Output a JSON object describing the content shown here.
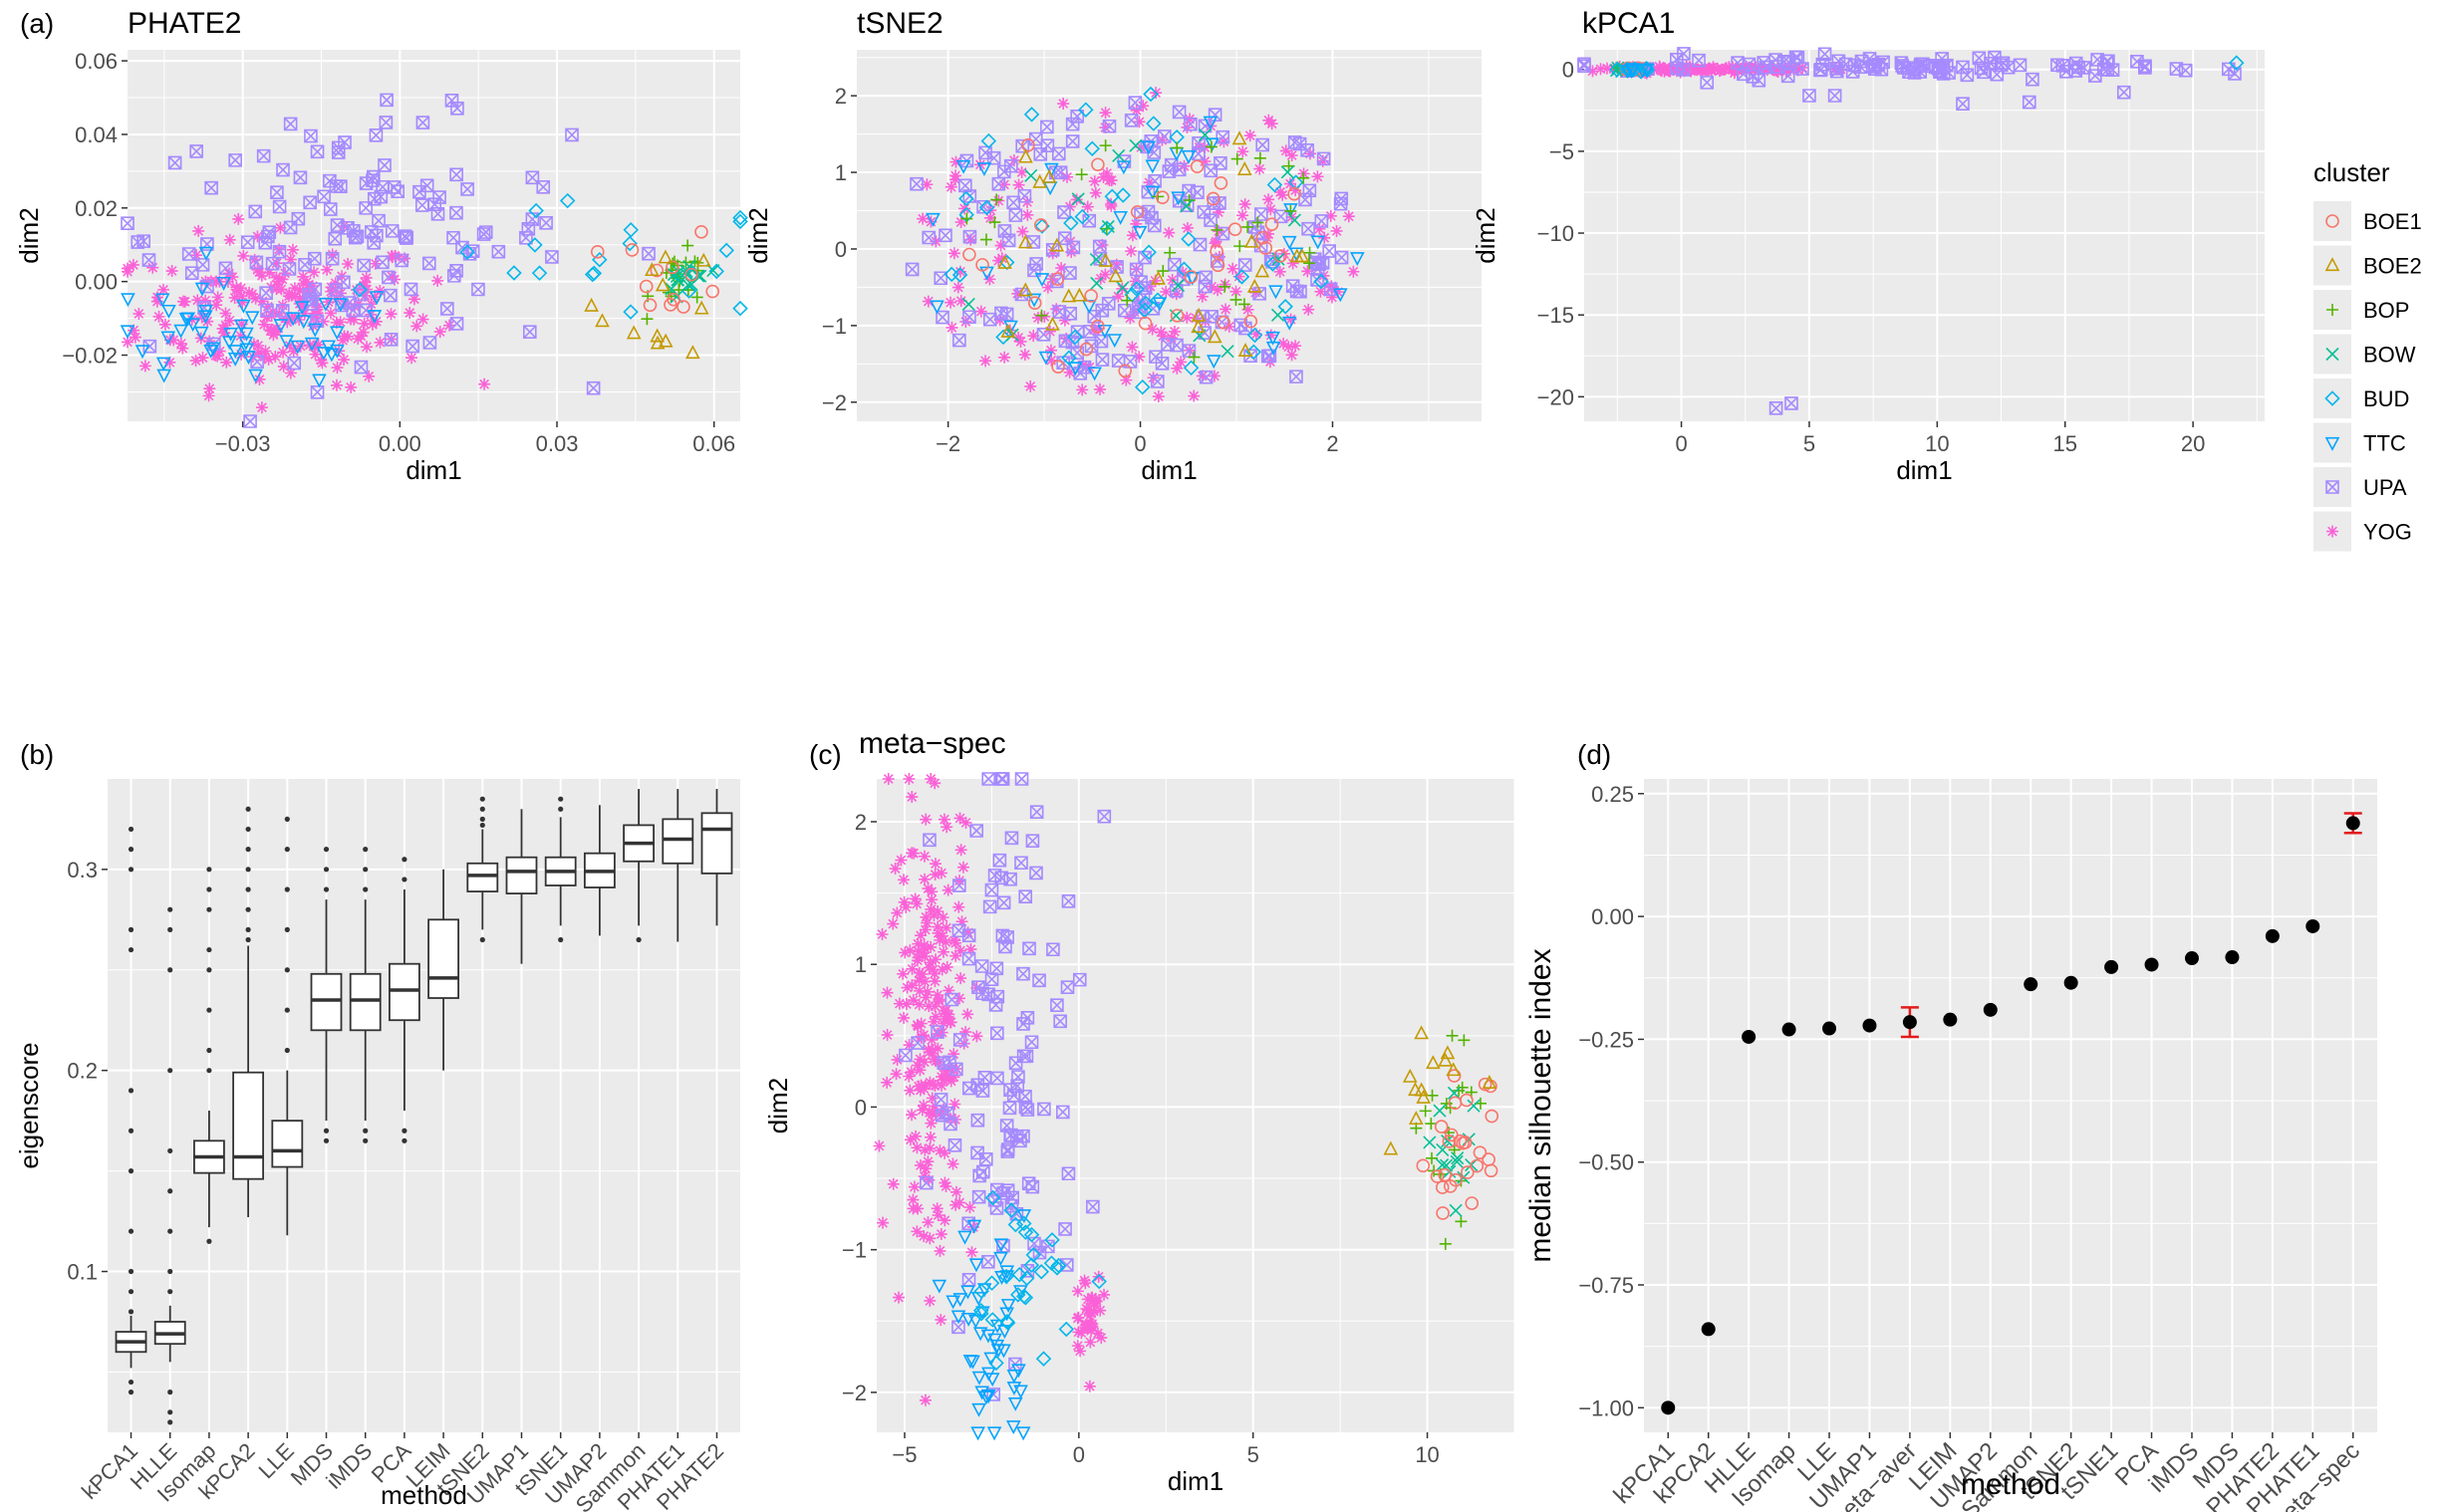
{
  "colors": {
    "BOE1": "#F8766D",
    "BOE2": "#C49A00",
    "BOP": "#53B400",
    "BOW": "#00C094",
    "BUD": "#00B6EB",
    "TTC": "#06A4FF",
    "UPA": "#A58AFF",
    "YOG": "#FB61D7",
    "panel_bg": "#EBEBEB",
    "grid": "#FFFFFF",
    "error_bar": "#E41A1C"
  },
  "legend": {
    "title": "cluster",
    "entries": [
      {
        "label": "BOE1",
        "shape": "circle"
      },
      {
        "label": "BOE2",
        "shape": "triangle"
      },
      {
        "label": "BOP",
        "shape": "plus"
      },
      {
        "label": "BOW",
        "shape": "cross"
      },
      {
        "label": "BUD",
        "shape": "diamond"
      },
      {
        "label": "TTC",
        "shape": "triangle-down"
      },
      {
        "label": "UPA",
        "shape": "square-cross"
      },
      {
        "label": "YOG",
        "shape": "asterisk"
      }
    ]
  },
  "chart_data": [
    {
      "id": "phate2",
      "panel_label": "(a)",
      "type": "scatter",
      "title": "PHATE2",
      "xlabel": "dim1",
      "ylabel": "dim2",
      "xlim": [
        -0.052,
        0.065
      ],
      "ylim": [
        -0.038,
        0.063
      ],
      "xticks": [
        -0.03,
        0.0,
        0.03,
        0.06
      ],
      "xtick_labels": [
        "−0.03",
        "0.00",
        "0.03",
        "0.06"
      ],
      "yticks": [
        -0.02,
        0.0,
        0.02,
        0.04,
        0.06
      ],
      "ytick_labels": [
        "−0.02",
        "0.00",
        "0.02",
        "0.04",
        "0.06"
      ],
      "note": "clusters represented as point clouds",
      "clusters": [
        {
          "name": "YOG",
          "n": 220,
          "cx": -0.022,
          "cy": -0.008,
          "sx": 0.014,
          "sy": 0.01
        },
        {
          "name": "UPA",
          "n": 140,
          "cx": -0.008,
          "cy": 0.012,
          "sx": 0.02,
          "sy": 0.016
        },
        {
          "name": "TTC",
          "n": 50,
          "cx": -0.03,
          "cy": -0.015,
          "sx": 0.016,
          "sy": 0.007
        },
        {
          "name": "BUD",
          "n": 20,
          "cx": 0.04,
          "cy": 0.005,
          "sx": 0.018,
          "sy": 0.008
        },
        {
          "name": "BOP",
          "n": 20,
          "cx": 0.054,
          "cy": 0.0,
          "sx": 0.003,
          "sy": 0.004
        },
        {
          "name": "BOW",
          "n": 15,
          "cx": 0.055,
          "cy": 0.001,
          "sx": 0.002,
          "sy": 0.003
        },
        {
          "name": "BOE1",
          "n": 12,
          "cx": 0.052,
          "cy": 0.002,
          "sx": 0.005,
          "sy": 0.006
        },
        {
          "name": "BOE2",
          "n": 12,
          "cx": 0.05,
          "cy": -0.005,
          "sx": 0.006,
          "sy": 0.008
        }
      ]
    },
    {
      "id": "tsne2",
      "panel_label": "",
      "type": "scatter",
      "title": "tSNE2",
      "xlabel": "dim1",
      "ylabel": "dim2",
      "xlim": [
        -2.95,
        3.55
      ],
      "ylim": [
        -2.25,
        2.6
      ],
      "xticks": [
        -2,
        0,
        2
      ],
      "xtick_labels": [
        "−2",
        "0",
        "2"
      ],
      "yticks": [
        -2,
        -1,
        0,
        1,
        2
      ],
      "ytick_labels": [
        "−2",
        "−1",
        "0",
        "1",
        "2"
      ],
      "clusters": [
        {
          "name": "YOG",
          "n": 200,
          "cx": 0.0,
          "cy": 0.0,
          "sx": 1.2,
          "sy": 1.0
        },
        {
          "name": "UPA",
          "n": 170,
          "cx": 0.0,
          "cy": 0.0,
          "sx": 1.3,
          "sy": 1.0
        },
        {
          "name": "TTC",
          "n": 40,
          "cx": 0.0,
          "cy": 0.0,
          "sx": 1.2,
          "sy": 1.0
        },
        {
          "name": "BUD",
          "n": 40,
          "cx": 0.0,
          "cy": 0.0,
          "sx": 1.2,
          "sy": 1.0
        },
        {
          "name": "BOP",
          "n": 30,
          "cx": 0.0,
          "cy": 0.0,
          "sx": 1.0,
          "sy": 0.9
        },
        {
          "name": "BOW",
          "n": 20,
          "cx": 0.0,
          "cy": 0.0,
          "sx": 1.0,
          "sy": 0.9
        },
        {
          "name": "BOE1",
          "n": 30,
          "cx": 0.0,
          "cy": 0.0,
          "sx": 1.0,
          "sy": 0.9
        },
        {
          "name": "BOE2",
          "n": 25,
          "cx": 0.0,
          "cy": 0.0,
          "sx": 1.0,
          "sy": 0.9
        }
      ]
    },
    {
      "id": "kpca1",
      "panel_label": "",
      "type": "scatter",
      "title": "kPCA1",
      "xlabel": "dim1",
      "ylabel": "dim2",
      "xlim": [
        -3.8,
        22.8
      ],
      "ylim": [
        -21.5,
        1.2
      ],
      "xticks": [
        0,
        5,
        10,
        15,
        20
      ],
      "xtick_labels": [
        "0",
        "5",
        "10",
        "15",
        "20"
      ],
      "yticks": [
        0,
        -5,
        -10,
        -15,
        -20
      ],
      "ytick_labels": [
        "0",
        "−5",
        "−10",
        "−15",
        "−20"
      ],
      "clusters": [
        {
          "name": "YOG",
          "n": 120,
          "cx": 1.0,
          "cy": 0.0,
          "sx": 2.0,
          "sy": 0.08
        },
        {
          "name": "UPA",
          "n": 100,
          "cx": 9.0,
          "cy": 0.1,
          "sx": 6.0,
          "sy": 0.3
        },
        {
          "name": "BOP",
          "n": 10,
          "cx": -2.2,
          "cy": 0.0,
          "sx": 0.3,
          "sy": 0.05
        },
        {
          "name": "BOW",
          "n": 8,
          "cx": -2.2,
          "cy": 0.0,
          "sx": 0.3,
          "sy": 0.05
        },
        {
          "name": "BOE1",
          "n": 8,
          "cx": -2.0,
          "cy": 0.0,
          "sx": 0.3,
          "sy": 0.05
        },
        {
          "name": "BUD",
          "n": 8,
          "cx": -2.0,
          "cy": 0.0,
          "sx": 0.4,
          "sy": 0.05
        },
        {
          "name": "TTC",
          "n": 6,
          "cx": -1.5,
          "cy": 0.0,
          "sx": 0.5,
          "sy": 0.05
        }
      ],
      "extra_points": [
        {
          "cluster": "BUD",
          "x": 21.7,
          "y": 0.4
        },
        {
          "cluster": "UPA",
          "x": 3.7,
          "y": -20.7
        },
        {
          "cluster": "UPA",
          "x": 4.3,
          "y": -20.4
        },
        {
          "cluster": "UPA",
          "x": 5.0,
          "y": -1.6
        },
        {
          "cluster": "UPA",
          "x": 6.0,
          "y": -1.6
        },
        {
          "cluster": "UPA",
          "x": 11.0,
          "y": -2.1
        },
        {
          "cluster": "UPA",
          "x": 13.6,
          "y": -2.0
        },
        {
          "cluster": "UPA",
          "x": 17.3,
          "y": -1.4
        },
        {
          "cluster": "UPA",
          "x": 1.0,
          "y": -0.8
        }
      ]
    },
    {
      "id": "eigenscore",
      "panel_label": "(b)",
      "type": "box",
      "title": "",
      "xlabel": "method",
      "ylabel": "eigenscore",
      "ylim": [
        0.02,
        0.345
      ],
      "yticks": [
        0.1,
        0.2,
        0.3
      ],
      "ytick_labels": [
        "0.1",
        "0.2",
        "0.3"
      ],
      "categories": [
        "kPCA1",
        "HLLE",
        "Isomap",
        "kPCA2",
        "LLE",
        "MDS",
        "iMDS",
        "PCA",
        "LEIM",
        "tSNE2",
        "UMAP1",
        "tSNE1",
        "UMAP2",
        "Sammon",
        "PHATE1",
        "PHATE2"
      ],
      "boxes": [
        {
          "min": 0.052,
          "q1": 0.06,
          "median": 0.065,
          "q3": 0.07,
          "max": 0.078,
          "outliers": [
            0.04,
            0.045,
            0.08,
            0.09,
            0.1,
            0.12,
            0.15,
            0.17,
            0.19,
            0.26,
            0.27,
            0.3,
            0.31,
            0.32
          ]
        },
        {
          "min": 0.055,
          "q1": 0.064,
          "median": 0.069,
          "q3": 0.075,
          "max": 0.083,
          "outliers": [
            0.025,
            0.03,
            0.04,
            0.09,
            0.1,
            0.12,
            0.14,
            0.16,
            0.2,
            0.25,
            0.27,
            0.28
          ]
        },
        {
          "min": 0.122,
          "q1": 0.149,
          "median": 0.157,
          "q3": 0.165,
          "max": 0.18,
          "outliers": [
            0.2,
            0.21,
            0.23,
            0.25,
            0.26,
            0.28,
            0.29,
            0.3,
            0.115
          ]
        },
        {
          "min": 0.127,
          "q1": 0.146,
          "median": 0.157,
          "q3": 0.199,
          "max": 0.262,
          "outliers": [
            0.265,
            0.27,
            0.28,
            0.29,
            0.3,
            0.31,
            0.32,
            0.33
          ]
        },
        {
          "min": 0.118,
          "q1": 0.152,
          "median": 0.16,
          "q3": 0.175,
          "max": 0.2,
          "outliers": [
            0.21,
            0.23,
            0.25,
            0.27,
            0.29,
            0.31,
            0.325
          ]
        },
        {
          "min": 0.175,
          "q1": 0.22,
          "median": 0.235,
          "q3": 0.248,
          "max": 0.285,
          "outliers": [
            0.165,
            0.17,
            0.29,
            0.3,
            0.31
          ]
        },
        {
          "min": 0.175,
          "q1": 0.22,
          "median": 0.235,
          "q3": 0.248,
          "max": 0.285,
          "outliers": [
            0.165,
            0.17,
            0.29,
            0.3,
            0.31
          ]
        },
        {
          "min": 0.18,
          "q1": 0.225,
          "median": 0.24,
          "q3": 0.253,
          "max": 0.29,
          "outliers": [
            0.165,
            0.17,
            0.295,
            0.305
          ]
        },
        {
          "min": 0.2,
          "q1": 0.236,
          "median": 0.246,
          "q3": 0.275,
          "max": 0.3,
          "outliers": []
        },
        {
          "min": 0.27,
          "q1": 0.289,
          "median": 0.297,
          "q3": 0.303,
          "max": 0.32,
          "outliers": [
            0.265,
            0.322,
            0.325,
            0.33,
            0.335
          ]
        },
        {
          "min": 0.253,
          "q1": 0.288,
          "median": 0.299,
          "q3": 0.306,
          "max": 0.33,
          "outliers": []
        },
        {
          "min": 0.272,
          "q1": 0.292,
          "median": 0.299,
          "q3": 0.306,
          "max": 0.326,
          "outliers": [
            0.265,
            0.33,
            0.335
          ]
        },
        {
          "min": 0.267,
          "q1": 0.291,
          "median": 0.299,
          "q3": 0.308,
          "max": 0.332,
          "outliers": []
        },
        {
          "min": 0.272,
          "q1": 0.304,
          "median": 0.313,
          "q3": 0.322,
          "max": 0.34,
          "outliers": [
            0.265
          ]
        },
        {
          "min": 0.264,
          "q1": 0.303,
          "median": 0.315,
          "q3": 0.325,
          "max": 0.34,
          "outliers": []
        },
        {
          "min": 0.272,
          "q1": 0.298,
          "median": 0.32,
          "q3": 0.328,
          "max": 0.34,
          "outliers": []
        }
      ]
    },
    {
      "id": "metaspec",
      "panel_label": "(c)",
      "type": "scatter",
      "title": "meta−spec",
      "xlabel": "dim1",
      "ylabel": "dim2",
      "xlim": [
        -5.8,
        12.5
      ],
      "ylim": [
        -2.28,
        2.3
      ],
      "xticks": [
        -5,
        0,
        5,
        10
      ],
      "xtick_labels": [
        "−5",
        "0",
        "5",
        "10"
      ],
      "yticks": [
        -2,
        -1,
        0,
        1,
        2
      ],
      "ytick_labels": [
        "−2",
        "−1",
        "0",
        "1",
        "2"
      ],
      "clusters": [
        {
          "name": "YOG",
          "n": 220,
          "cx": -4.2,
          "cy": 0.6,
          "sx": 0.6,
          "sy": 0.8
        },
        {
          "name": "YOG",
          "n": 40,
          "cx": 0.3,
          "cy": -1.45,
          "sx": 0.2,
          "sy": 0.15
        },
        {
          "name": "UPA",
          "n": 120,
          "cx": -2.0,
          "cy": 0.3,
          "sx": 1.1,
          "sy": 1.0
        },
        {
          "name": "TTC",
          "n": 50,
          "cx": -2.5,
          "cy": -1.6,
          "sx": 0.5,
          "sy": 0.4
        },
        {
          "name": "BUD",
          "n": 30,
          "cx": -1.6,
          "cy": -1.2,
          "sx": 0.8,
          "sy": 0.3
        },
        {
          "name": "BOP",
          "n": 20,
          "cx": 10.5,
          "cy": -0.1,
          "sx": 0.5,
          "sy": 0.35
        },
        {
          "name": "BOW",
          "n": 15,
          "cx": 10.8,
          "cy": -0.4,
          "sx": 0.4,
          "sy": 0.2
        },
        {
          "name": "BOE1",
          "n": 25,
          "cx": 11.0,
          "cy": -0.3,
          "sx": 0.5,
          "sy": 0.25
        },
        {
          "name": "BOE2",
          "n": 12,
          "cx": 10.0,
          "cy": 0.1,
          "sx": 0.5,
          "sy": 0.2
        }
      ]
    },
    {
      "id": "silhouette",
      "panel_label": "(d)",
      "type": "scatter",
      "title": "",
      "xlabel": "method",
      "ylabel": "median silhouette index",
      "ylim": [
        -1.05,
        0.28
      ],
      "yticks": [
        0.25,
        0.0,
        -0.25,
        -0.5,
        -0.75,
        -1.0
      ],
      "ytick_labels": [
        "0.25",
        "0.00",
        "−0.25",
        "−0.50",
        "−0.75",
        "−1.00"
      ],
      "categories": [
        "kPCA1",
        "kPCA2",
        "HLLE",
        "Isomap",
        "LLE",
        "UMAP1",
        "meta−aver",
        "LEIM",
        "UMAP2",
        "Sammon",
        "tSNE2",
        "tSNE1",
        "PCA",
        "iMDS",
        "MDS",
        "PHATE2",
        "PHATE1",
        "meta−spec"
      ],
      "values": [
        -1.0,
        -0.84,
        -0.245,
        -0.23,
        -0.228,
        -0.222,
        -0.215,
        -0.21,
        -0.19,
        -0.138,
        -0.135,
        -0.103,
        -0.098,
        -0.085,
        -0.083,
        -0.04,
        -0.02,
        0.19
      ],
      "error_bars": [
        {
          "category": "meta−aver",
          "low": -0.245,
          "high": -0.185
        },
        {
          "category": "meta−spec",
          "low": 0.17,
          "high": 0.21
        }
      ]
    }
  ]
}
